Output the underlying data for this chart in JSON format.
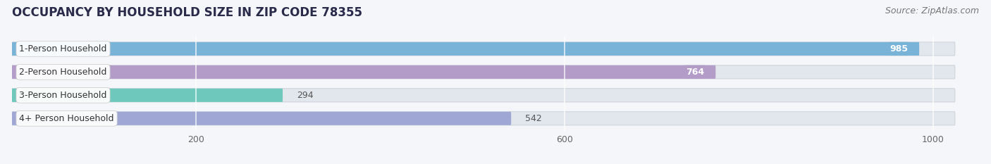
{
  "title": "OCCUPANCY BY HOUSEHOLD SIZE IN ZIP CODE 78355",
  "source": "Source: ZipAtlas.com",
  "categories": [
    "1-Person Household",
    "2-Person Household",
    "3-Person Household",
    "4+ Person Household"
  ],
  "values": [
    985,
    764,
    294,
    542
  ],
  "bar_colors": [
    "#7ab3d8",
    "#b39cc8",
    "#6ec8bc",
    "#9fa8d5"
  ],
  "label_inside": [
    true,
    true,
    false,
    false
  ],
  "label_text_colors_inside": [
    "white",
    "white",
    "white",
    "white"
  ],
  "label_text_colors_outside": [
    "#555555",
    "#555555",
    "#555555",
    "#555555"
  ],
  "xlim_max": 1050,
  "xticks": [
    200,
    600,
    1000
  ],
  "background_color": "#f4f6f9",
  "bar_bg_color": "#e2e6ed",
  "title_fontsize": 12,
  "source_fontsize": 9,
  "bar_label_fontsize": 9,
  "category_fontsize": 9
}
